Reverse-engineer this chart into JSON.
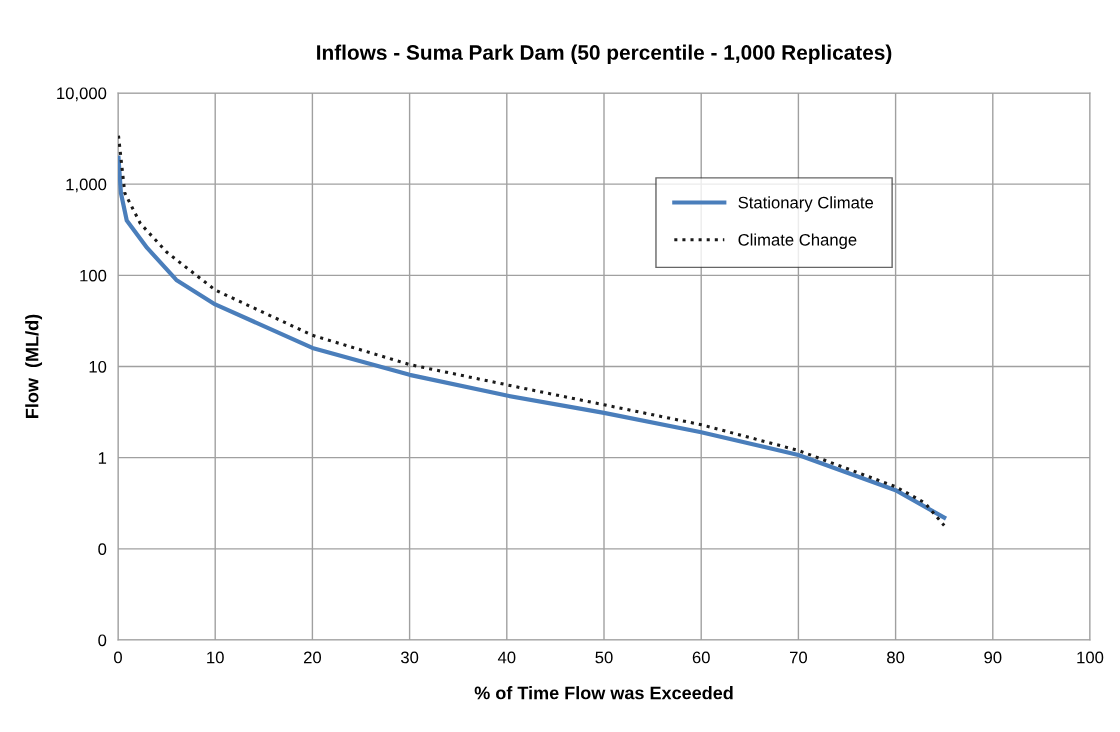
{
  "chart_data": {
    "type": "line",
    "title": "Inflows - Suma Park Dam (50 percentile - 1,000 Replicates)",
    "xlabel": "% of Time Flow was Exceeded",
    "ylabel": "Flow  (ML/d)",
    "log": "y",
    "grid": true,
    "legend": "top right",
    "xlim": [
      0,
      100
    ],
    "xticks": [
      0,
      10,
      20,
      30,
      40,
      50,
      60,
      70,
      80,
      90,
      100
    ],
    "ylim": [
      0.01,
      10000
    ],
    "yticks": [
      {
        "value": 0.01,
        "label": "0"
      },
      {
        "value": 0.1,
        "label": "0"
      },
      {
        "value": 1,
        "label": "1"
      },
      {
        "value": 10,
        "label": "10"
      },
      {
        "value": 100,
        "label": "100"
      },
      {
        "value": 1000,
        "label": "1,000"
      },
      {
        "value": 10000,
        "label": "10,000"
      }
    ],
    "series": [
      {
        "name": "Stationary Climate",
        "color": "#4a7ebb",
        "line_style": "solid",
        "x": [
          0.05,
          0.3,
          0.9,
          3,
          6,
          10,
          20,
          30,
          40,
          50,
          60,
          70,
          80,
          85
        ],
        "values": [
          1950,
          800,
          400,
          200,
          89,
          48,
          16,
          8.1,
          4.8,
          3.1,
          1.9,
          1.07,
          0.44,
          0.22
        ]
      },
      {
        "name": "Climate Change",
        "color": "#1a1a1a",
        "line_style": "dotted",
        "x": [
          0.05,
          0.7,
          2.3,
          5,
          10,
          20,
          30,
          40,
          50,
          60,
          70,
          80,
          83,
          85
        ],
        "values": [
          3400,
          800,
          370,
          180,
          69,
          22,
          10.5,
          6.3,
          3.8,
          2.3,
          1.2,
          0.48,
          0.32,
          0.18
        ]
      }
    ]
  }
}
